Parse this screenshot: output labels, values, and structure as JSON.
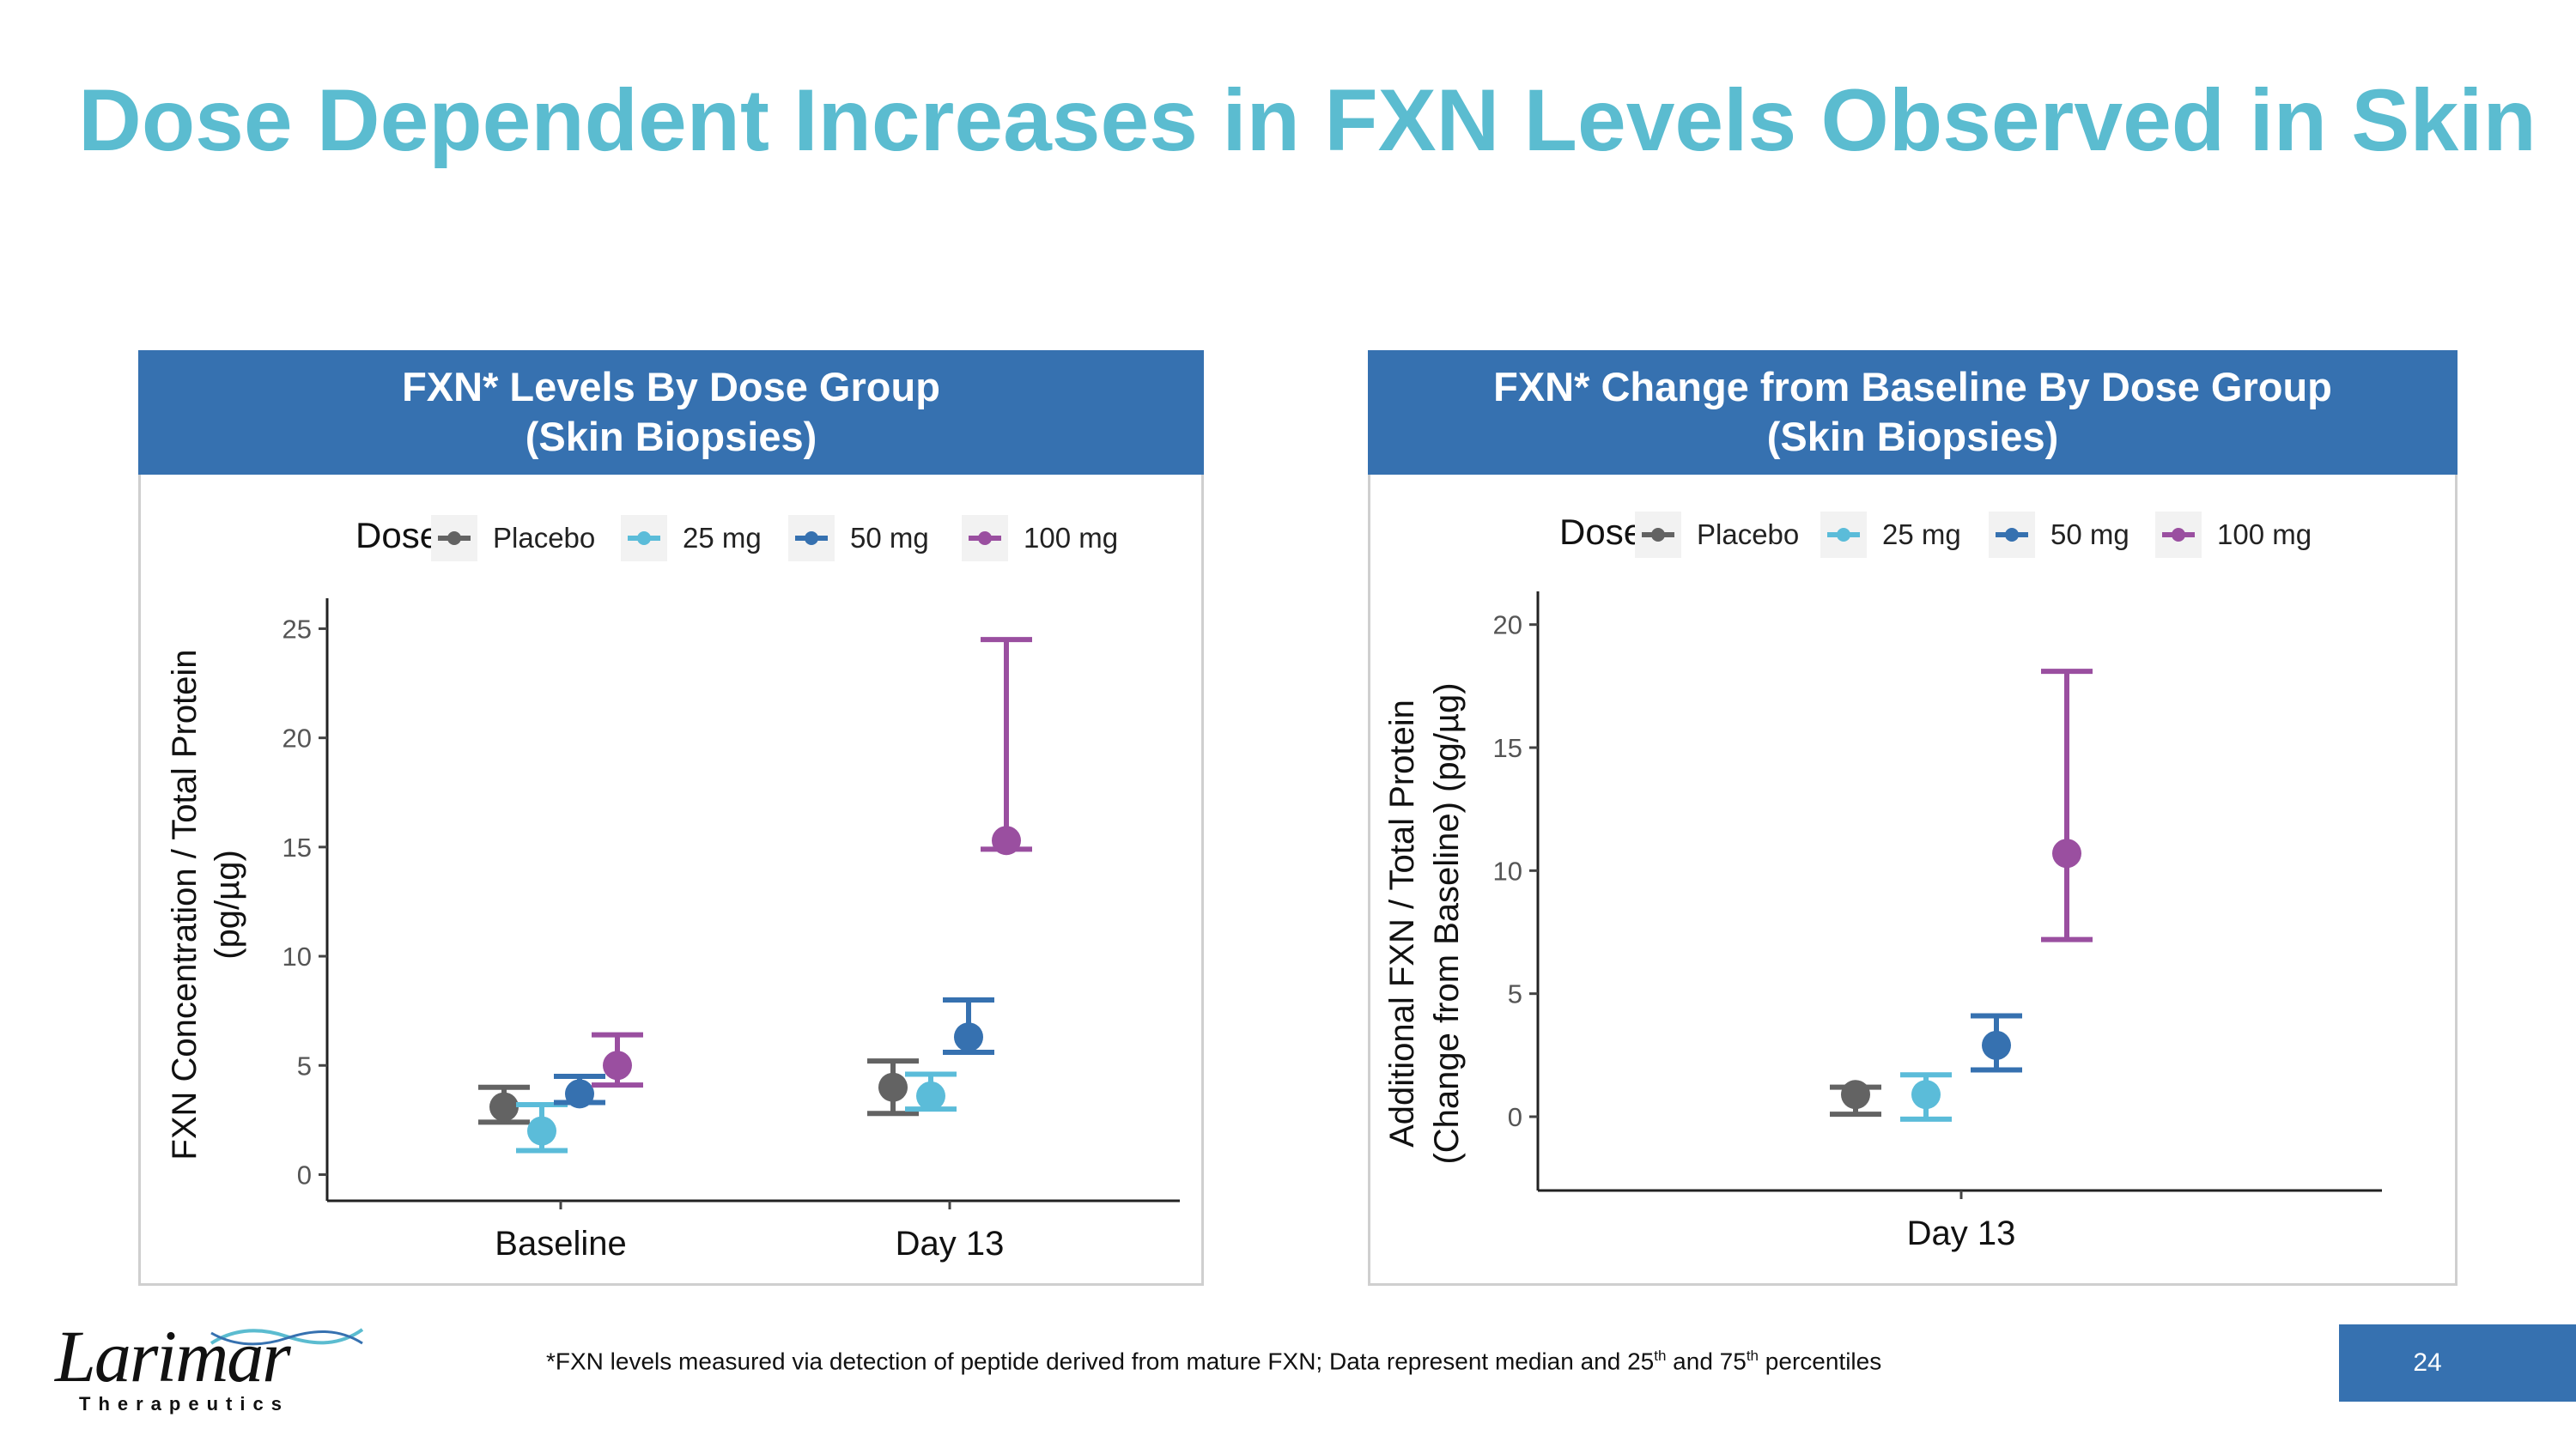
{
  "slide": {
    "title": "Dose Dependent Increases in FXN Levels Observed in Skin",
    "page_number": "24",
    "footnote": {
      "text_a": "*FXN levels measured via detection of peptide derived from mature FXN; Data represent median and 25",
      "sup_a": "th",
      "text_b": " and 75",
      "sup_b": "th",
      "text_c": " percentiles"
    },
    "logo": {
      "word": "Larimar",
      "subtitle": "Therapeutics"
    }
  },
  "colors": {
    "title": "#5bbcd0",
    "header": "#3671b0",
    "placebo": "#636363",
    "25 mg": "#5bbcd9",
    "50 mg": "#3671b0",
    "100 mg": "#9a4fa0"
  },
  "chart_data": [
    {
      "type": "scatter",
      "title": "FXN* Levels By Dose Group",
      "subtitle": "(Skin Biopsies)",
      "legend_title": "Dose",
      "legend_position": "top",
      "xlabel": "",
      "ylabel_line1": "FXN Concentration / Total Protein",
      "ylabel_line2": "(pg/µg)",
      "categories": [
        "Baseline",
        "Day 13"
      ],
      "ylim": [
        -1.2,
        26
      ],
      "yticks": [
        0,
        5,
        10,
        15,
        20,
        25
      ],
      "series": [
        {
          "name": "Placebo",
          "color": "#636363",
          "median": [
            3.1,
            4.0
          ],
          "q1": [
            2.4,
            2.8
          ],
          "q3": [
            4.0,
            5.2
          ]
        },
        {
          "name": "25 mg",
          "color": "#5bbcd9",
          "median": [
            2.0,
            3.6
          ],
          "q1": [
            1.1,
            3.0
          ],
          "q3": [
            3.2,
            4.6
          ]
        },
        {
          "name": "50 mg",
          "color": "#3671b0",
          "median": [
            3.7,
            6.3
          ],
          "q1": [
            3.3,
            5.6
          ],
          "q3": [
            4.5,
            8.0
          ]
        },
        {
          "name": "100 mg",
          "color": "#9a4fa0",
          "median": [
            5.0,
            15.3
          ],
          "q1": [
            4.1,
            14.9
          ],
          "q3": [
            6.4,
            24.5
          ]
        }
      ]
    },
    {
      "type": "scatter",
      "title": "FXN* Change from Baseline By Dose Group",
      "subtitle": "(Skin Biopsies)",
      "legend_title": "Dose",
      "legend_position": "top",
      "xlabel": "",
      "ylabel_line1": "Additional FXN / Total Protein",
      "ylabel_line2": "(Change from Baseline) (pg/µg)",
      "categories": [
        "Day 13"
      ],
      "ylim": [
        -3,
        21
      ],
      "yticks": [
        0,
        5,
        10,
        15,
        20
      ],
      "series": [
        {
          "name": "Placebo",
          "color": "#636363",
          "median": [
            0.9
          ],
          "q1": [
            0.1
          ],
          "q3": [
            1.2
          ]
        },
        {
          "name": "25 mg",
          "color": "#5bbcd9",
          "median": [
            0.9
          ],
          "q1": [
            -0.1
          ],
          "q3": [
            1.7
          ]
        },
        {
          "name": "50 mg",
          "color": "#3671b0",
          "median": [
            2.9
          ],
          "q1": [
            1.9
          ],
          "q3": [
            4.1
          ]
        },
        {
          "name": "100 mg",
          "color": "#9a4fa0",
          "median": [
            10.7
          ],
          "q1": [
            7.2
          ],
          "q3": [
            18.1
          ]
        }
      ]
    }
  ]
}
